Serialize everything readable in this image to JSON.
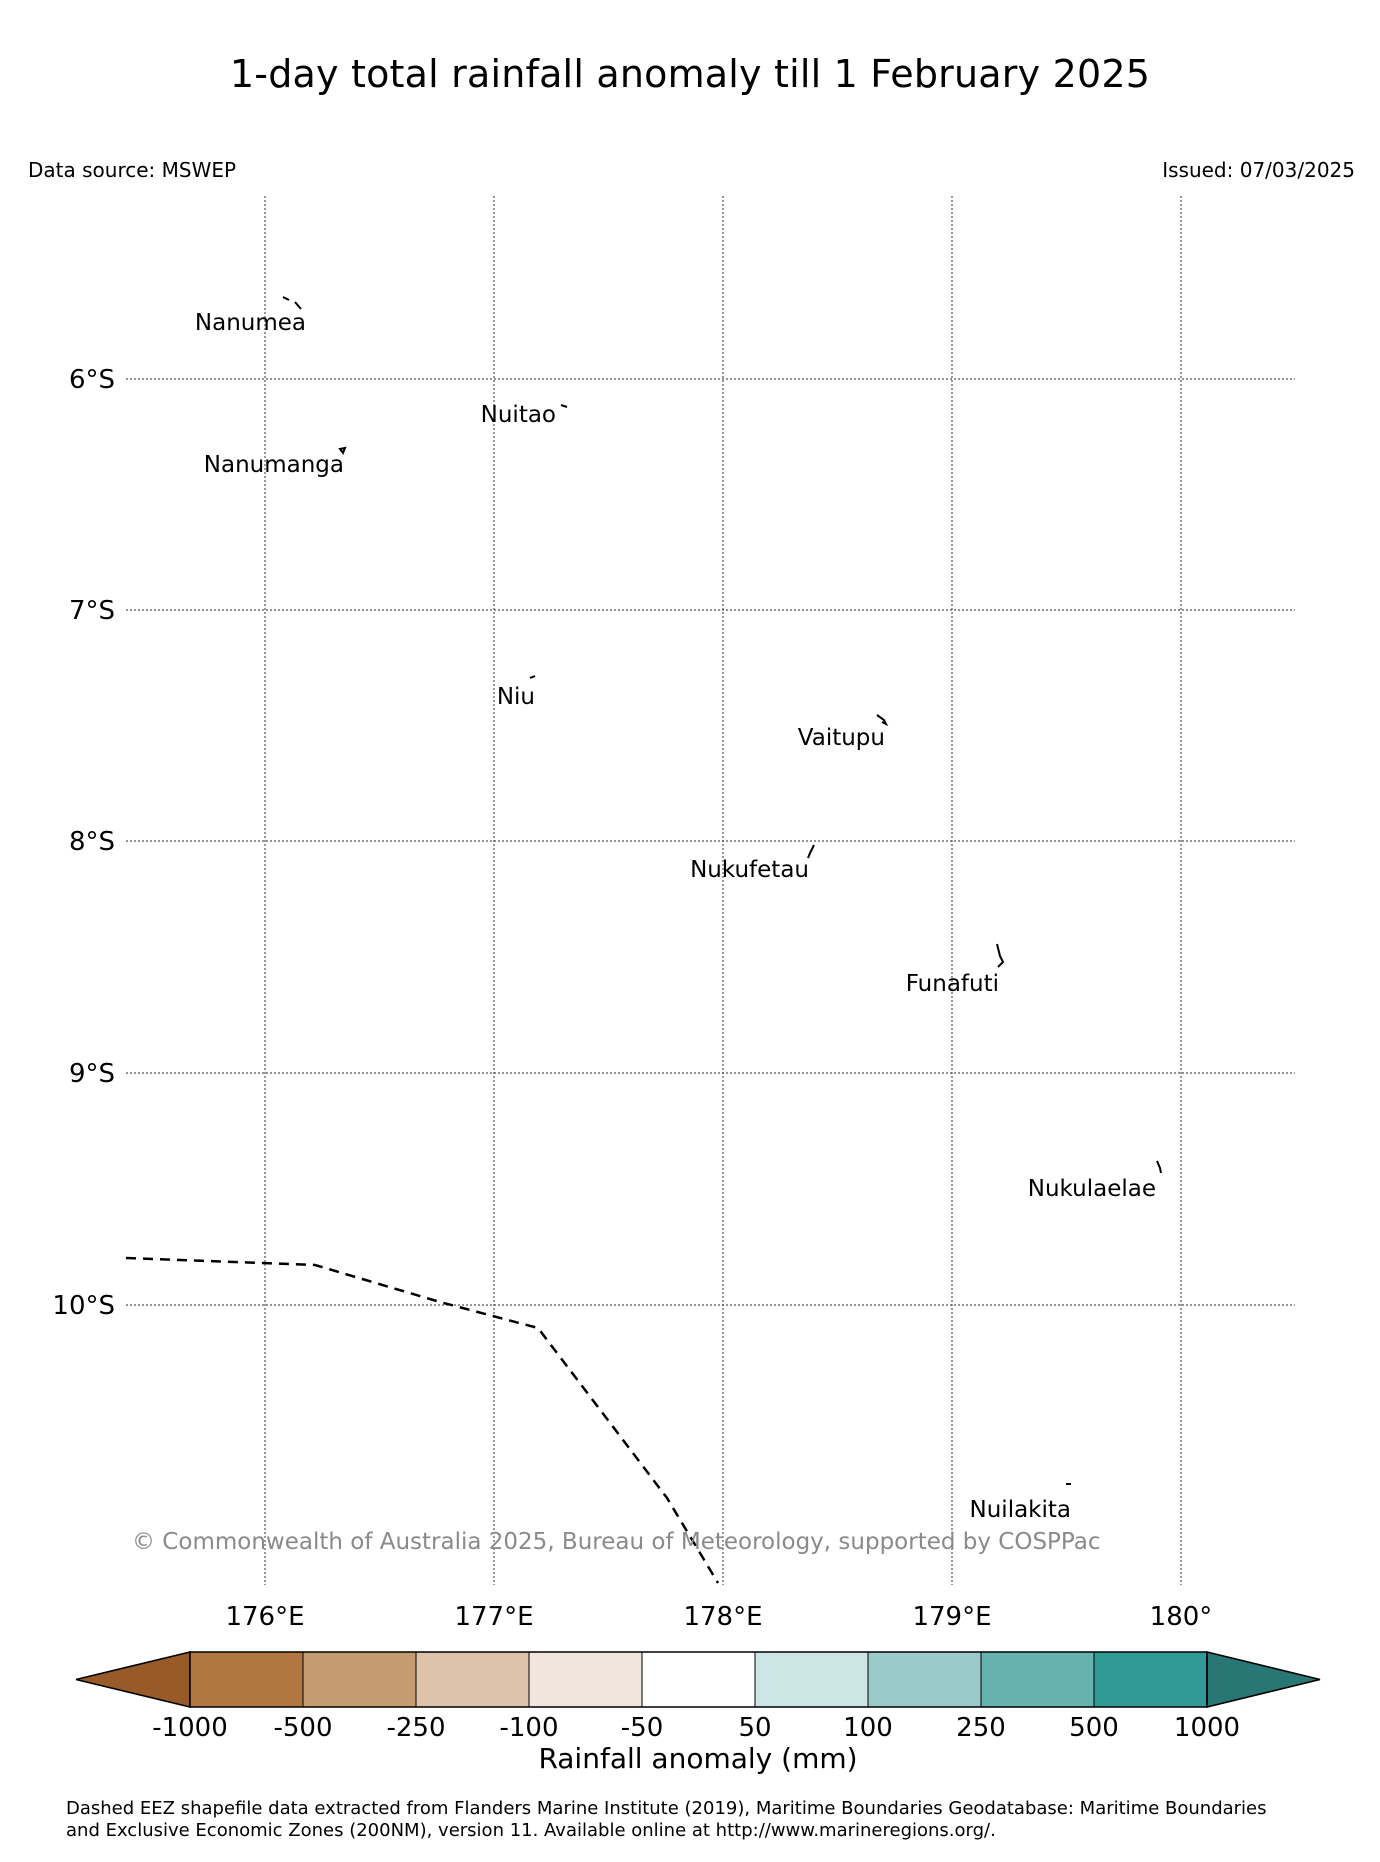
{
  "header": {
    "title": "1-day total rainfall anomaly till 1 February 2025",
    "data_source": "Data source: MSWEP",
    "issued": "Issued: 07/03/2025"
  },
  "map": {
    "lat_labels": [
      "6°S",
      "7°S",
      "8°S",
      "9°S",
      "10°S"
    ],
    "lon_labels": [
      "176°E",
      "177°E",
      "178°E",
      "179°E",
      "180°"
    ],
    "gridlines": true,
    "eez_boundary": "dashed",
    "copyright": "© Commonwealth of Australia 2025, Bureau of Meteorology, supported by COSPPac",
    "islands": [
      {
        "name": "Nanumea"
      },
      {
        "name": "Nuitao"
      },
      {
        "name": "Nanumanga"
      },
      {
        "name": "Niu"
      },
      {
        "name": "Vaitupu"
      },
      {
        "name": "Nukufetau"
      },
      {
        "name": "Funafuti"
      },
      {
        "name": "Nukulaelae"
      },
      {
        "name": "Nuilakita"
      }
    ]
  },
  "colorbar": {
    "label": "Rainfall anomaly (mm)",
    "ticks": [
      "-1000",
      "-500",
      "-250",
      "-100",
      "-50",
      "50",
      "100",
      "250",
      "500",
      "1000"
    ],
    "colors": [
      "#985a28",
      "#b07740",
      "#c59b72",
      "#ddc3aa",
      "#f1e6dc",
      "#ffffff",
      "#cbe6e5",
      "#9acac9",
      "#65b2b1",
      "#319996",
      "#287774"
    ],
    "extend": "both"
  },
  "footer": {
    "line1": "Dashed EEZ shapefile data extracted from Flanders Marine Institute (2019), Maritime Boundaries Geodatabase: Maritime Boundaries",
    "line2": "and Exclusive Economic Zones (200NM), version 11. Available online at http://www.marineregions.org/."
  }
}
